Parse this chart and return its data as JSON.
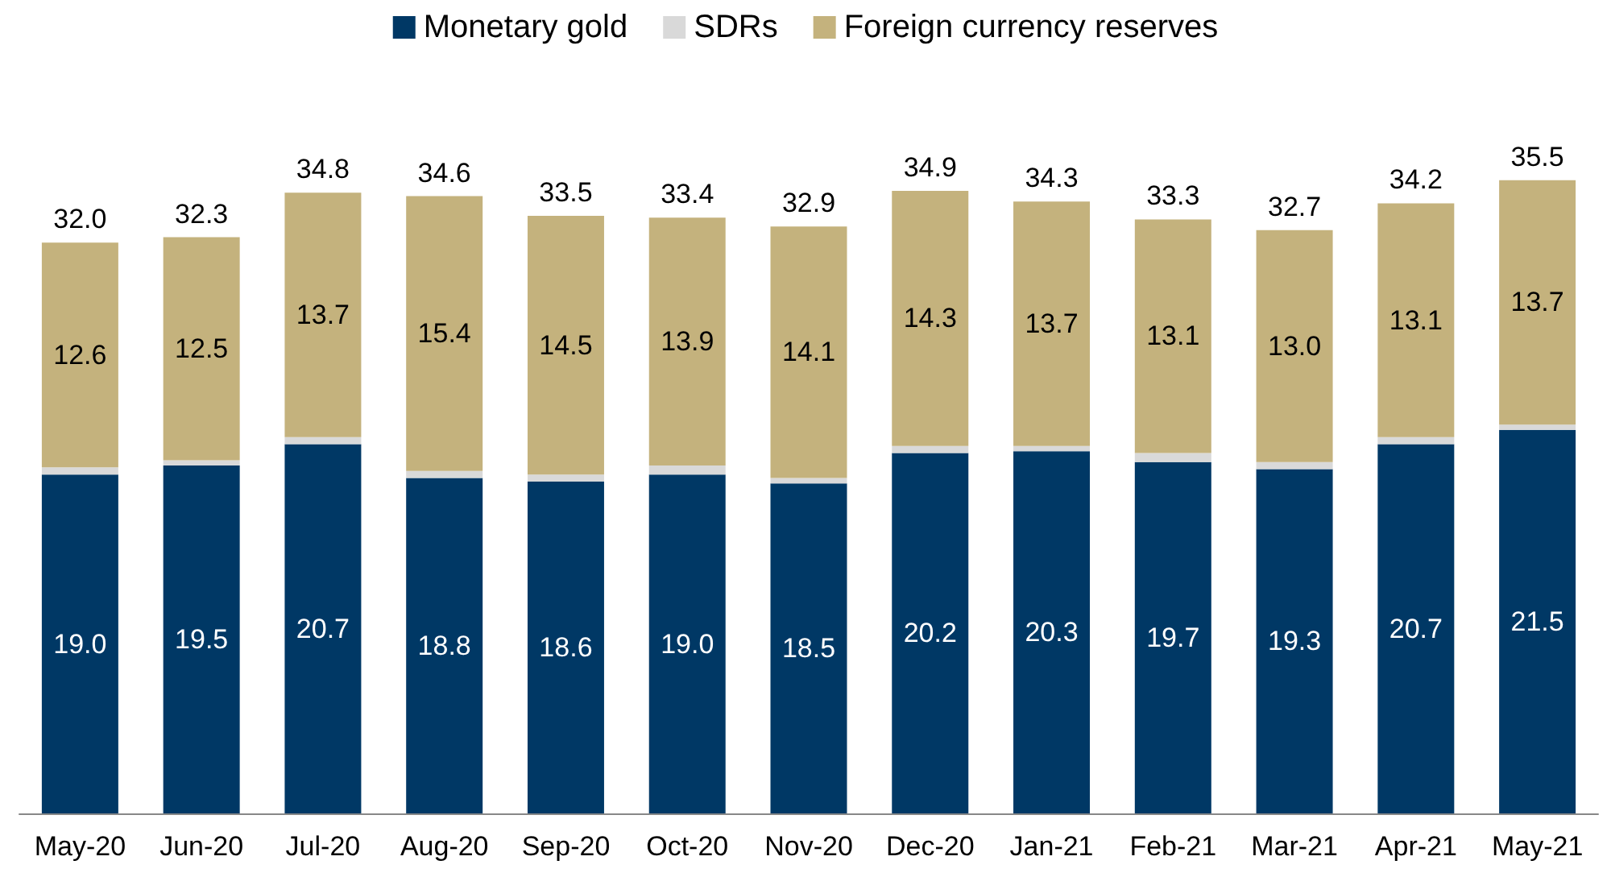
{
  "chart_data": {
    "type": "bar",
    "stacked": true,
    "legend": "top",
    "categories": [
      "May-20",
      "Jun-20",
      "Jul-20",
      "Aug-20",
      "Sep-20",
      "Oct-20",
      "Nov-20",
      "Dec-20",
      "Jan-21",
      "Feb-21",
      "Mar-21",
      "Apr-21",
      "May-21"
    ],
    "series": [
      {
        "name": "Monetary gold",
        "color": "#003865",
        "values": [
          19.0,
          19.5,
          20.7,
          18.8,
          18.6,
          19.0,
          18.5,
          20.2,
          20.3,
          19.7,
          19.3,
          20.7,
          21.5
        ],
        "value_labels": [
          "19.0",
          "19.5",
          "20.7",
          "18.8",
          "18.6",
          "19.0",
          "18.5",
          "20.2",
          "20.3",
          "19.7",
          "19.3",
          "20.7",
          "21.5"
        ]
      },
      {
        "name": "SDRs",
        "color": "#d9d9d9",
        "values": [
          0.4,
          0.3,
          0.4,
          0.4,
          0.4,
          0.5,
          0.3,
          0.4,
          0.3,
          0.5,
          0.4,
          0.4,
          0.3
        ]
      },
      {
        "name": "Foreign currency reserves",
        "color": "#c4b27d",
        "values": [
          12.6,
          12.5,
          13.7,
          15.4,
          14.5,
          13.9,
          14.1,
          14.3,
          13.7,
          13.1,
          13.0,
          13.1,
          13.7
        ],
        "value_labels": [
          "12.6",
          "12.5",
          "13.7",
          "15.4",
          "14.5",
          "13.9",
          "14.1",
          "14.3",
          "13.7",
          "13.1",
          "13.0",
          "13.1",
          "13.7"
        ]
      }
    ],
    "totals": [
      "32.0",
      "32.3",
      "34.8",
      "34.6",
      "33.5",
      "33.4",
      "32.9",
      "34.9",
      "34.3",
      "33.3",
      "32.7",
      "34.2",
      "35.5"
    ]
  }
}
